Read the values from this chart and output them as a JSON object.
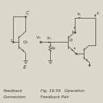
{
  "bg_color": "#ddd8cc",
  "line_color": "#5a5550",
  "text_color": "#333333",
  "title_left1": "Feedback",
  "title_left2": "Connection",
  "title_right1": "Fig. 19.59   Operation",
  "title_right2": "Feedback Pair",
  "label_fs": 5.0,
  "small_fs": 4.2,
  "tiny_fs": 3.8
}
